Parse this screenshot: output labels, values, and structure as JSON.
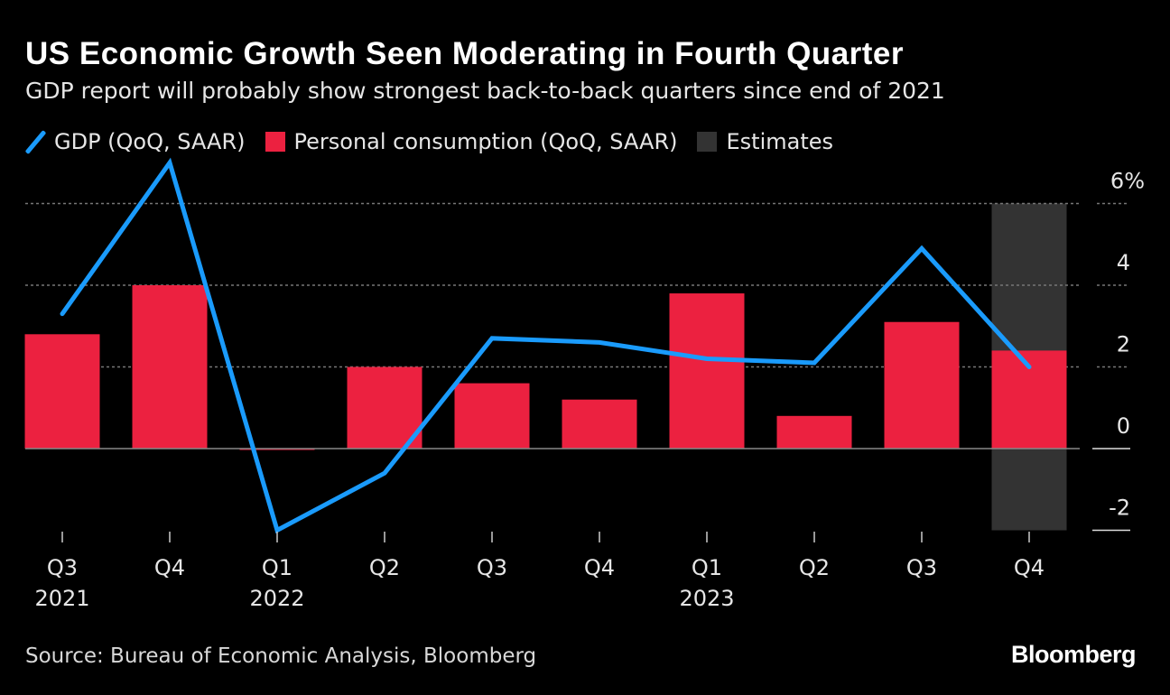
{
  "header": {
    "title": "US Economic Growth Seen Moderating in Fourth Quarter",
    "subtitle": "GDP report will probably show strongest back-to-back quarters since end of 2021"
  },
  "footer": {
    "source": "Source: Bureau of Economic Analysis, Bloomberg",
    "logo": "Bloomberg"
  },
  "chart_data": {
    "type": "bar+line",
    "title": "US Economic Growth Seen Moderating in Fourth Quarter",
    "legend": [
      "GDP (QoQ, SAAR)",
      "Personal consumption (QoQ, SAAR)",
      "Estimates"
    ],
    "legend_position": "top-left",
    "colors": {
      "gdp": "#1a9bfc",
      "consumption": "#ec2140",
      "estimates": "#333333"
    },
    "categories": [
      "Q3",
      "Q4",
      "Q1",
      "Q2",
      "Q3",
      "Q4",
      "Q1",
      "Q2",
      "Q3",
      "Q4"
    ],
    "year_labels": [
      {
        "index": 0,
        "label": "2021"
      },
      {
        "index": 2,
        "label": "2022"
      },
      {
        "index": 6,
        "label": "2023"
      }
    ],
    "series": [
      {
        "name": "GDP (QoQ, SAAR)",
        "type": "line",
        "values": [
          3.3,
          7.0,
          -2.0,
          -0.6,
          2.7,
          2.6,
          2.2,
          2.1,
          4.9,
          2.0
        ]
      },
      {
        "name": "Personal consumption (QoQ, SAAR)",
        "type": "bar",
        "values": [
          2.8,
          4.0,
          0.0,
          2.0,
          1.6,
          1.2,
          3.8,
          0.8,
          3.1,
          2.4
        ]
      }
    ],
    "estimate_indices": [
      9
    ],
    "ylim": [
      -2,
      6
    ],
    "yticks": [
      {
        "v": 6,
        "label": "6%"
      },
      {
        "v": 4,
        "label": "4"
      },
      {
        "v": 2,
        "label": "2"
      },
      {
        "v": 0,
        "label": "0"
      },
      {
        "v": -2,
        "label": "-2"
      }
    ],
    "grid": true
  }
}
